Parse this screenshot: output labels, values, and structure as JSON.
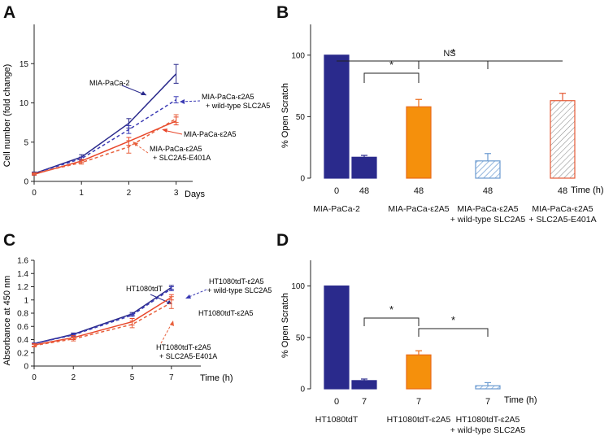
{
  "colors": {
    "blue": "#2a2a8c",
    "blue_dash": "#3a3ab4",
    "red": "#e8462a",
    "red_dash": "#e8603c",
    "orange": "#f5900c",
    "orange_edge": "#ea6a16",
    "hatch_blue": "#6a9ad0",
    "hatch_red": "#e55a36",
    "axis": "#222222"
  },
  "chart_data": [
    {
      "panel": "A",
      "type": "line",
      "ylabel": "Cell number (fold change)",
      "xlabel": "Days",
      "x": [
        0,
        1,
        2,
        3
      ],
      "xticks": [
        "0",
        "1",
        "2",
        "3"
      ],
      "yticks": [
        "0",
        "5",
        "10",
        "15"
      ],
      "ytick_values": [
        0,
        5,
        10,
        15
      ],
      "xlim": [
        0,
        3.35
      ],
      "ylim": [
        0,
        20
      ],
      "series": [
        {
          "name": "MIA-PaCa-2",
          "values": [
            1.0,
            3.1,
            7.4,
            13.7
          ],
          "err": [
            0.2,
            0.3,
            0.6,
            1.2
          ],
          "color": "blue",
          "style": "solid"
        },
        {
          "name": "MIA-PaCa-ε2A5 + wild-type SLC2A5",
          "values": [
            1.0,
            2.9,
            6.6,
            10.4
          ],
          "err": [
            0.1,
            0.2,
            0.5,
            0.4
          ],
          "color": "blue_dash",
          "style": "dashed"
        },
        {
          "name": "MIA-PaCa-ε2A5",
          "values": [
            0.9,
            2.6,
            5.1,
            7.7
          ],
          "err": [
            0.1,
            0.2,
            0.5,
            0.5
          ],
          "color": "red",
          "style": "solid"
        },
        {
          "name": "MIA-PaCa-ε2A5 + SLC2A5-E401A",
          "values": [
            1.0,
            2.4,
            4.4,
            8.0
          ],
          "err": [
            0.1,
            0.2,
            0.8,
            0.5
          ],
          "color": "red_dash",
          "style": "dashed"
        }
      ],
      "labels": {
        "mia": "MIA-PaCa-2",
        "wt1": "MIA-PaCa-ε2A5",
        "wt2": "+ wild-type SLC2A5",
        "e2a5": "MIA-PaCa-ε2A5",
        "mut1": "MIA-PaCa-ε2A5",
        "mut2": "+ SLC2A5-E401A"
      }
    },
    {
      "panel": "B",
      "type": "bar",
      "ylabel": "% Open Scratch",
      "ylim": [
        0,
        125
      ],
      "yticks": [
        "0",
        "50",
        "100"
      ],
      "ytick_values": [
        0,
        50,
        100
      ],
      "time_label": "Time (h)",
      "bars": [
        {
          "time": "0",
          "value": 100,
          "err": 0,
          "fill": "blue"
        },
        {
          "time": "48",
          "value": 17,
          "err": 1.5,
          "fill": "blue"
        },
        {
          "time": "48",
          "value": 58,
          "err": 6,
          "fill": "orange"
        },
        {
          "time": "48",
          "value": 14,
          "err": 6,
          "fill": "hatch_blue"
        },
        {
          "time": "48",
          "value": 63,
          "err": 6,
          "fill": "hatch_red"
        }
      ],
      "groups": [
        {
          "line1": "MIA-PaCa-2",
          "line2": ""
        },
        {
          "line1": "MIA-PaCa-ε2A5",
          "line2": ""
        },
        {
          "line1": "MIA-PaCa-ε2A5",
          "line2": "+ wild-type SLC2A5"
        },
        {
          "line1": "MIA-PaCa-ε2A5",
          "line2": "+ SLC2A5-E401A"
        }
      ],
      "significance": [
        {
          "from": 1,
          "to": 2,
          "label": "*"
        },
        {
          "from": 2,
          "to": 3,
          "label": "*"
        },
        {
          "from": 0,
          "to": 4,
          "label": "NS"
        }
      ]
    },
    {
      "panel": "C",
      "type": "line",
      "ylabel": "Absorbance at 450 nm",
      "xlabel": "Time (h)",
      "x": [
        0,
        2,
        5,
        7
      ],
      "xticks": [
        "0",
        "2",
        "5",
        "7"
      ],
      "yticks": [
        "0",
        "0.2",
        "0.4",
        "0.6",
        "0.8",
        "1",
        "1.2",
        "1.4",
        "1.6"
      ],
      "ytick_values": [
        0,
        0.2,
        0.4,
        0.6,
        0.8,
        1.0,
        1.2,
        1.4,
        1.6
      ],
      "xlim": [
        0,
        8.5
      ],
      "ylim": [
        0,
        1.6
      ],
      "series": [
        {
          "name": "HT1080tdT",
          "values": [
            0.34,
            0.48,
            0.79,
            1.19
          ],
          "err": [
            0.01,
            0.02,
            0.02,
            0.03
          ],
          "color": "blue",
          "style": "solid"
        },
        {
          "name": "HT1080tdT-ε2A5 + wild-type SLC2A5",
          "values": [
            0.34,
            0.47,
            0.77,
            1.17
          ],
          "err": [
            0.01,
            0.02,
            0.02,
            0.03
          ],
          "color": "blue_dash",
          "style": "dashed"
        },
        {
          "name": "HT1080tdT-ε2A5",
          "values": [
            0.32,
            0.43,
            0.67,
            1.04
          ],
          "err": [
            0.02,
            0.03,
            0.05,
            0.04
          ],
          "color": "red",
          "style": "solid"
        },
        {
          "name": "HT1080tdT-ε2A5 + SLC2A5-E401A",
          "values": [
            0.31,
            0.41,
            0.63,
            0.96
          ],
          "err": [
            0.02,
            0.03,
            0.05,
            0.09
          ],
          "color": "red_dash",
          "style": "dashed"
        }
      ],
      "labels": {
        "ht": "HT1080tdT",
        "wt1": "HT1080tdT-ε2A5",
        "wt2": "+ wild-type SLC2A5",
        "e2a5": "HT1080tdT-ε2A5",
        "mut1": "HT1080tdT-ε2A5",
        "mut2": "+ SLC2A5-E401A"
      }
    },
    {
      "panel": "D",
      "type": "bar",
      "ylabel": "% Open Scratch",
      "ylim": [
        0,
        125
      ],
      "yticks": [
        "0",
        "50",
        "100"
      ],
      "ytick_values": [
        0,
        50,
        100
      ],
      "time_label": "Time (h)",
      "bars": [
        {
          "time": "0",
          "value": 100,
          "err": 0,
          "fill": "blue"
        },
        {
          "time": "7",
          "value": 8,
          "err": 1.5,
          "fill": "blue"
        },
        {
          "time": "7",
          "value": 33,
          "err": 4,
          "fill": "orange"
        },
        {
          "time": "7",
          "value": 3,
          "err": 3,
          "fill": "hatch_blue"
        }
      ],
      "groups": [
        {
          "line1": "HT1080tdT",
          "line2": ""
        },
        {
          "line1": "HT1080tdT-ε2A5",
          "line2": ""
        },
        {
          "line1": "HT1080tdT-ε2A5",
          "line2": "+ wild-type SLC2A5"
        }
      ],
      "significance": [
        {
          "from": 1,
          "to": 2,
          "label": "*"
        },
        {
          "from": 2,
          "to": 3,
          "label": "*"
        }
      ]
    }
  ],
  "panels": {
    "a": "A",
    "b": "B",
    "c": "C",
    "d": "D"
  }
}
